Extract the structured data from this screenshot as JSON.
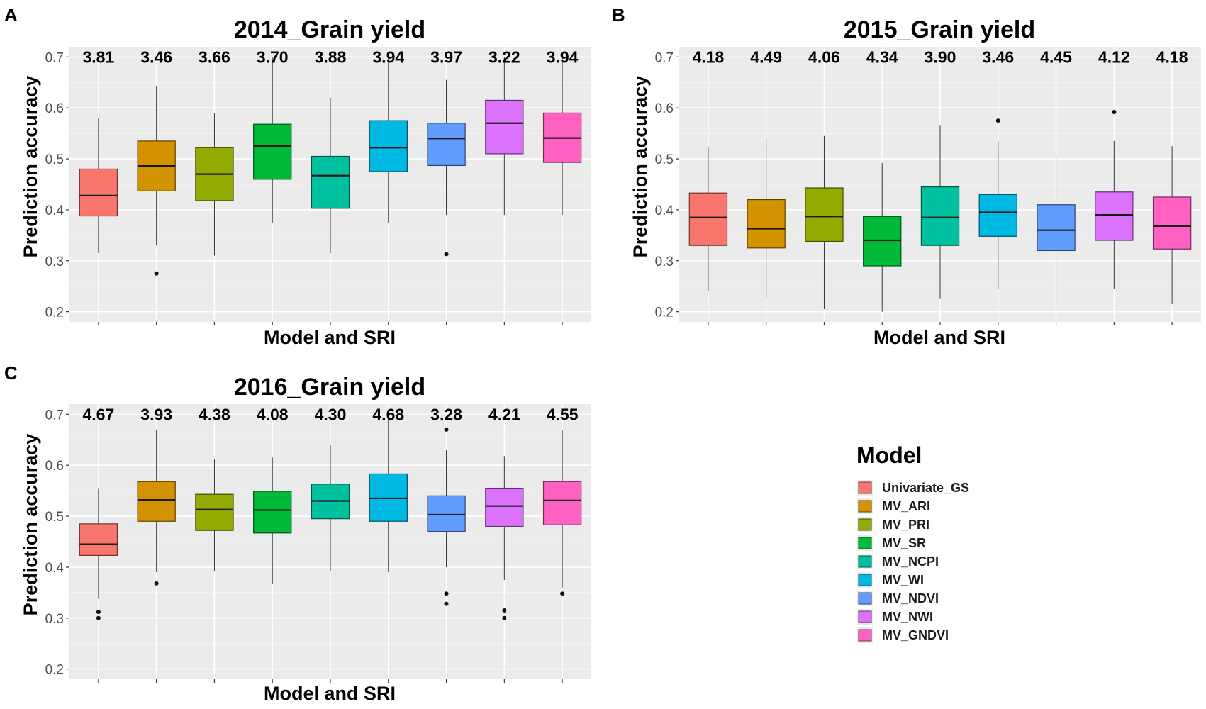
{
  "chart_data": [
    {
      "panel": "A",
      "type": "box",
      "title": "2014_Grain yield",
      "xlabel": "Model and SRI",
      "ylabel": "Prediction accuracy",
      "ylim": [
        0.18,
        0.72
      ],
      "yticks": [
        0.2,
        0.3,
        0.4,
        0.5,
        0.6,
        0.7
      ],
      "ytick_labels": [
        "0.2",
        "0.3",
        "0.4",
        "0.5",
        "0.6",
        "0.7"
      ],
      "categories": [
        "Univariate_GS",
        "MV_ARI",
        "MV_PRI",
        "MV_SR",
        "MV_NCPI",
        "MV_WI",
        "MV_NDVI",
        "MV_NWI",
        "MV_GNDVI"
      ],
      "annotations": [
        "3.81",
        "3.46",
        "3.66",
        "3.70",
        "3.88",
        "3.94",
        "3.97",
        "3.22",
        "3.94"
      ],
      "boxes": [
        {
          "min": 0.315,
          "q1": 0.388,
          "median": 0.428,
          "q3": 0.48,
          "max": 0.58,
          "outliers": []
        },
        {
          "min": 0.33,
          "q1": 0.437,
          "median": 0.486,
          "q3": 0.535,
          "max": 0.642,
          "outliers": [
            0.275
          ]
        },
        {
          "min": 0.31,
          "q1": 0.418,
          "median": 0.47,
          "q3": 0.522,
          "max": 0.59,
          "outliers": []
        },
        {
          "min": 0.375,
          "q1": 0.46,
          "median": 0.525,
          "q3": 0.568,
          "max": 0.7,
          "outliers": []
        },
        {
          "min": 0.315,
          "q1": 0.403,
          "median": 0.467,
          "q3": 0.505,
          "max": 0.62,
          "outliers": []
        },
        {
          "min": 0.375,
          "q1": 0.475,
          "median": 0.522,
          "q3": 0.575,
          "max": 0.7,
          "outliers": []
        },
        {
          "min": 0.39,
          "q1": 0.487,
          "median": 0.54,
          "q3": 0.57,
          "max": 0.655,
          "outliers": [
            0.313
          ]
        },
        {
          "min": 0.39,
          "q1": 0.51,
          "median": 0.57,
          "q3": 0.615,
          "max": 0.7,
          "outliers": []
        },
        {
          "min": 0.39,
          "q1": 0.493,
          "median": 0.541,
          "q3": 0.59,
          "max": 0.7,
          "outliers": []
        }
      ]
    },
    {
      "panel": "B",
      "type": "box",
      "title": "2015_Grain yield",
      "xlabel": "Model and SRI",
      "ylabel": "Prediction accuracy",
      "ylim": [
        0.18,
        0.72
      ],
      "yticks": [
        0.2,
        0.3,
        0.4,
        0.5,
        0.6,
        0.7
      ],
      "ytick_labels": [
        "0.2",
        "0.3",
        "0.4",
        "0.5",
        "0.6",
        "0.7"
      ],
      "categories": [
        "Univariate_GS",
        "MV_ARI",
        "MV_PRI",
        "MV_SR",
        "MV_NCPI",
        "MV_WI",
        "MV_NDVI",
        "MV_NWI",
        "MV_GNDVI"
      ],
      "annotations": [
        "4.18",
        "4.49",
        "4.06",
        "4.34",
        "3.90",
        "3.46",
        "4.45",
        "4.12",
        "4.18"
      ],
      "boxes": [
        {
          "min": 0.24,
          "q1": 0.33,
          "median": 0.385,
          "q3": 0.433,
          "max": 0.522,
          "outliers": []
        },
        {
          "min": 0.225,
          "q1": 0.325,
          "median": 0.363,
          "q3": 0.42,
          "max": 0.54,
          "outliers": []
        },
        {
          "min": 0.205,
          "q1": 0.338,
          "median": 0.387,
          "q3": 0.443,
          "max": 0.545,
          "outliers": []
        },
        {
          "min": 0.2,
          "q1": 0.29,
          "median": 0.34,
          "q3": 0.387,
          "max": 0.492,
          "outliers": []
        },
        {
          "min": 0.225,
          "q1": 0.33,
          "median": 0.385,
          "q3": 0.445,
          "max": 0.565,
          "outliers": []
        },
        {
          "min": 0.245,
          "q1": 0.348,
          "median": 0.395,
          "q3": 0.43,
          "max": 0.535,
          "outliers": [
            0.575
          ]
        },
        {
          "min": 0.21,
          "q1": 0.32,
          "median": 0.36,
          "q3": 0.41,
          "max": 0.505,
          "outliers": []
        },
        {
          "min": 0.245,
          "q1": 0.34,
          "median": 0.39,
          "q3": 0.435,
          "max": 0.535,
          "outliers": [
            0.592
          ]
        },
        {
          "min": 0.215,
          "q1": 0.323,
          "median": 0.368,
          "q3": 0.425,
          "max": 0.525,
          "outliers": []
        }
      ]
    },
    {
      "panel": "C",
      "type": "box",
      "title": "2016_Grain yield",
      "xlabel": "Model and SRI",
      "ylabel": "Prediction accuracy",
      "ylim": [
        0.18,
        0.72
      ],
      "yticks": [
        0.2,
        0.3,
        0.4,
        0.5,
        0.6,
        0.7
      ],
      "ytick_labels": [
        "0.2",
        "0.3",
        "0.4",
        "0.5",
        "0.6",
        "0.7"
      ],
      "categories": [
        "Univariate_GS",
        "MV_ARI",
        "MV_PRI",
        "MV_SR",
        "MV_NCPI",
        "MV_WI",
        "MV_NDVI",
        "MV_NWI",
        "MV_GNDVI"
      ],
      "annotations": [
        "4.67",
        "3.93",
        "4.38",
        "4.08",
        "4.30",
        "4.68",
        "3.28",
        "4.21",
        "4.55"
      ],
      "boxes": [
        {
          "min": 0.338,
          "q1": 0.423,
          "median": 0.445,
          "q3": 0.485,
          "max": 0.555,
          "outliers": [
            0.312,
            0.3
          ]
        },
        {
          "min": 0.39,
          "q1": 0.49,
          "median": 0.532,
          "q3": 0.568,
          "max": 0.67,
          "outliers": [
            0.368
          ]
        },
        {
          "min": 0.393,
          "q1": 0.472,
          "median": 0.513,
          "q3": 0.543,
          "max": 0.612,
          "outliers": []
        },
        {
          "min": 0.368,
          "q1": 0.467,
          "median": 0.512,
          "q3": 0.549,
          "max": 0.615,
          "outliers": []
        },
        {
          "min": 0.393,
          "q1": 0.495,
          "median": 0.53,
          "q3": 0.563,
          "max": 0.64,
          "outliers": []
        },
        {
          "min": 0.39,
          "q1": 0.49,
          "median": 0.535,
          "q3": 0.583,
          "max": 0.7,
          "outliers": []
        },
        {
          "min": 0.4,
          "q1": 0.47,
          "median": 0.503,
          "q3": 0.54,
          "max": 0.63,
          "outliers": [
            0.67,
            0.348,
            0.328
          ]
        },
        {
          "min": 0.375,
          "q1": 0.48,
          "median": 0.52,
          "q3": 0.555,
          "max": 0.618,
          "outliers": [
            0.315,
            0.3
          ]
        },
        {
          "min": 0.36,
          "q1": 0.483,
          "median": 0.531,
          "q3": 0.568,
          "max": 0.67,
          "outliers": [
            0.348
          ]
        }
      ]
    }
  ],
  "legend": {
    "title": "Model",
    "items": [
      {
        "label": "Univariate_GS",
        "color": "#F8766D"
      },
      {
        "label": "MV_ARI",
        "color": "#D39200"
      },
      {
        "label": "MV_PRI",
        "color": "#93AA00"
      },
      {
        "label": "MV_SR",
        "color": "#00BA38"
      },
      {
        "label": "MV_NCPI",
        "color": "#00C19F"
      },
      {
        "label": "MV_WI",
        "color": "#00B9E3"
      },
      {
        "label": "MV_NDVI",
        "color": "#619CFF"
      },
      {
        "label": "MV_NWI",
        "color": "#DB72FB"
      },
      {
        "label": "MV_GNDVI",
        "color": "#FF61C3"
      }
    ]
  }
}
